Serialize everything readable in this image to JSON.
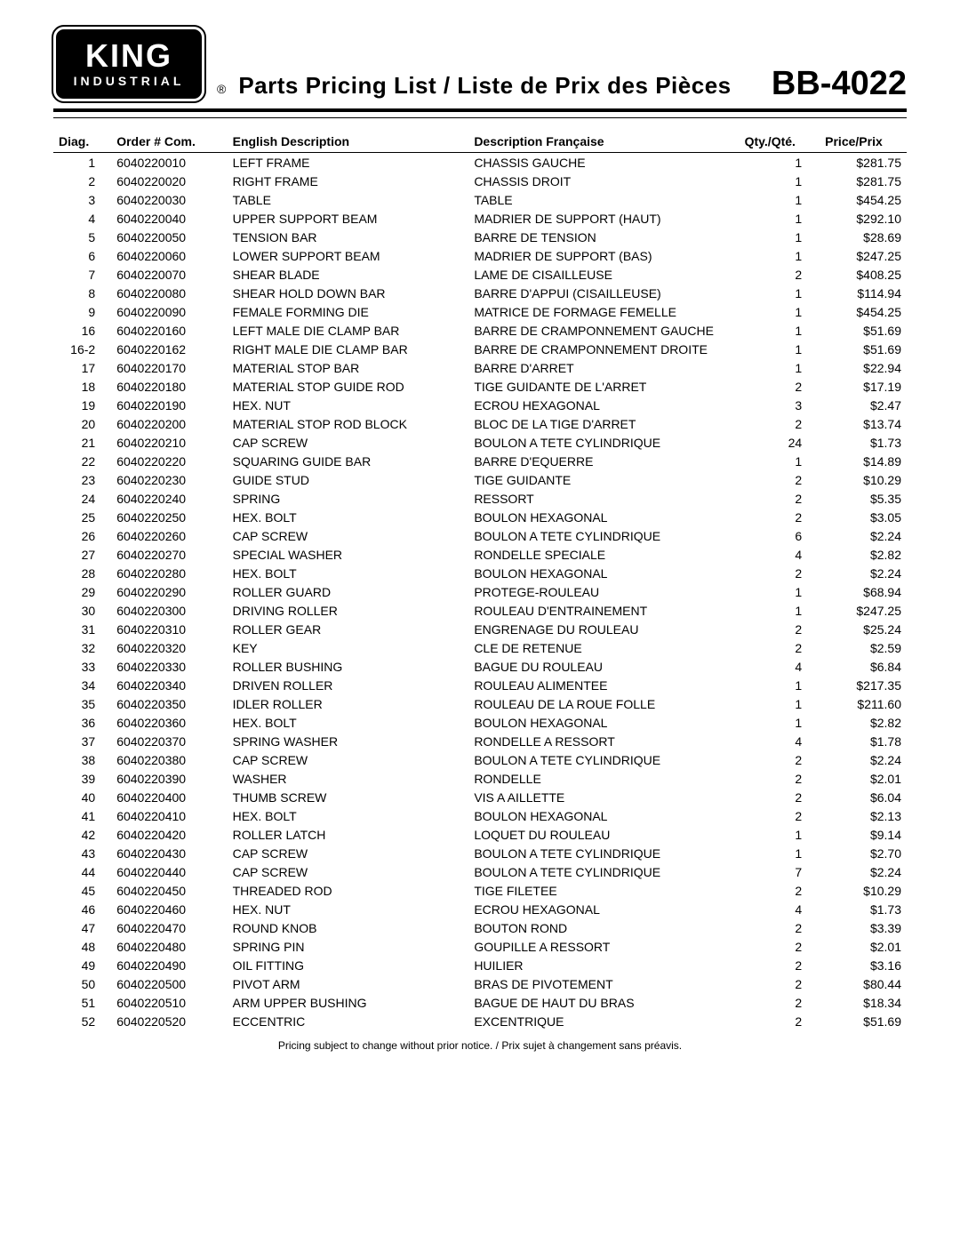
{
  "logo": {
    "top": "KING",
    "bottom": "INDUSTRIAL"
  },
  "title": "Parts Pricing List / Liste de Prix des Pièces",
  "model": "BB-4022",
  "columns": {
    "diag": "Diag.",
    "order": "Order # Com.",
    "en": "English Description",
    "fr": "Description Française",
    "qty": "Qty./Qté.",
    "price": "Price/Prix"
  },
  "rows": [
    {
      "diag": "1",
      "order": "6040220010",
      "en": "LEFT FRAME",
      "fr": "CHASSIS GAUCHE",
      "qty": "1",
      "price": "$281.75"
    },
    {
      "diag": "2",
      "order": "6040220020",
      "en": "RIGHT FRAME",
      "fr": "CHASSIS DROIT",
      "qty": "1",
      "price": "$281.75"
    },
    {
      "diag": "3",
      "order": "6040220030",
      "en": "TABLE",
      "fr": "TABLE",
      "qty": "1",
      "price": "$454.25"
    },
    {
      "diag": "4",
      "order": "6040220040",
      "en": "UPPER SUPPORT BEAM",
      "fr": "MADRIER DE SUPPORT (HAUT)",
      "qty": "1",
      "price": "$292.10"
    },
    {
      "diag": "5",
      "order": "6040220050",
      "en": "TENSION BAR",
      "fr": "BARRE DE TENSION",
      "qty": "1",
      "price": "$28.69"
    },
    {
      "diag": "6",
      "order": "6040220060",
      "en": "LOWER SUPPORT BEAM",
      "fr": "MADRIER DE SUPPORT (BAS)",
      "qty": "1",
      "price": "$247.25"
    },
    {
      "diag": "7",
      "order": "6040220070",
      "en": "SHEAR BLADE",
      "fr": "LAME DE CISAILLEUSE",
      "qty": "2",
      "price": "$408.25"
    },
    {
      "diag": "8",
      "order": "6040220080",
      "en": "SHEAR HOLD DOWN BAR",
      "fr": "BARRE D'APPUI (CISAILLEUSE)",
      "qty": "1",
      "price": "$114.94"
    },
    {
      "diag": "9",
      "order": "6040220090",
      "en": "FEMALE FORMING DIE",
      "fr": "MATRICE DE FORMAGE FEMELLE",
      "qty": "1",
      "price": "$454.25"
    },
    {
      "diag": "16",
      "order": "6040220160",
      "en": "LEFT MALE DIE CLAMP BAR",
      "fr": "BARRE DE CRAMPONNEMENT GAUCHE",
      "qty": "1",
      "price": "$51.69"
    },
    {
      "diag": "16-2",
      "order": "6040220162",
      "en": "RIGHT MALE DIE CLAMP BAR",
      "fr": "BARRE DE CRAMPONNEMENT DROITE",
      "qty": "1",
      "price": "$51.69"
    },
    {
      "diag": "17",
      "order": "6040220170",
      "en": "MATERIAL STOP BAR",
      "fr": "BARRE D'ARRET",
      "qty": "1",
      "price": "$22.94"
    },
    {
      "diag": "18",
      "order": "6040220180",
      "en": "MATERIAL STOP GUIDE ROD",
      "fr": "TIGE GUIDANTE DE L'ARRET",
      "qty": "2",
      "price": "$17.19"
    },
    {
      "diag": "19",
      "order": "6040220190",
      "en": "HEX. NUT",
      "fr": "ECROU HEXAGONAL",
      "qty": "3",
      "price": "$2.47"
    },
    {
      "diag": "20",
      "order": "6040220200",
      "en": "MATERIAL STOP ROD BLOCK",
      "fr": "BLOC DE LA TIGE D'ARRET",
      "qty": "2",
      "price": "$13.74"
    },
    {
      "diag": "21",
      "order": "6040220210",
      "en": "CAP SCREW",
      "fr": "BOULON A TETE CYLINDRIQUE",
      "qty": "24",
      "price": "$1.73"
    },
    {
      "diag": "22",
      "order": "6040220220",
      "en": "SQUARING GUIDE BAR",
      "fr": "BARRE D'EQUERRE",
      "qty": "1",
      "price": "$14.89"
    },
    {
      "diag": "23",
      "order": "6040220230",
      "en": "GUIDE STUD",
      "fr": "TIGE GUIDANTE",
      "qty": "2",
      "price": "$10.29"
    },
    {
      "diag": "24",
      "order": "6040220240",
      "en": "SPRING",
      "fr": "RESSORT",
      "qty": "2",
      "price": "$5.35"
    },
    {
      "diag": "25",
      "order": "6040220250",
      "en": "HEX. BOLT",
      "fr": "BOULON HEXAGONAL",
      "qty": "2",
      "price": "$3.05"
    },
    {
      "diag": "26",
      "order": "6040220260",
      "en": "CAP SCREW",
      "fr": "BOULON A TETE CYLINDRIQUE",
      "qty": "6",
      "price": "$2.24"
    },
    {
      "diag": "27",
      "order": "6040220270",
      "en": "SPECIAL WASHER",
      "fr": "RONDELLE SPECIALE",
      "qty": "4",
      "price": "$2.82"
    },
    {
      "diag": "28",
      "order": "6040220280",
      "en": "HEX. BOLT",
      "fr": "BOULON HEXAGONAL",
      "qty": "2",
      "price": "$2.24"
    },
    {
      "diag": "29",
      "order": "6040220290",
      "en": "ROLLER GUARD",
      "fr": "PROTEGE-ROULEAU",
      "qty": "1",
      "price": "$68.94"
    },
    {
      "diag": "30",
      "order": "6040220300",
      "en": "DRIVING ROLLER",
      "fr": "ROULEAU D'ENTRAINEMENT",
      "qty": "1",
      "price": "$247.25"
    },
    {
      "diag": "31",
      "order": "6040220310",
      "en": "ROLLER GEAR",
      "fr": "ENGRENAGE DU ROULEAU",
      "qty": "2",
      "price": "$25.24"
    },
    {
      "diag": "32",
      "order": "6040220320",
      "en": "KEY",
      "fr": "CLE DE RETENUE",
      "qty": "2",
      "price": "$2.59"
    },
    {
      "diag": "33",
      "order": "6040220330",
      "en": "ROLLER BUSHING",
      "fr": "BAGUE DU ROULEAU",
      "qty": "4",
      "price": "$6.84"
    },
    {
      "diag": "34",
      "order": "6040220340",
      "en": "DRIVEN ROLLER",
      "fr": "ROULEAU ALIMENTEE",
      "qty": "1",
      "price": "$217.35"
    },
    {
      "diag": "35",
      "order": "6040220350",
      "en": "IDLER ROLLER",
      "fr": "ROULEAU DE LA ROUE FOLLE",
      "qty": "1",
      "price": "$211.60"
    },
    {
      "diag": "36",
      "order": "6040220360",
      "en": "HEX. BOLT",
      "fr": "BOULON HEXAGONAL",
      "qty": "1",
      "price": "$2.82"
    },
    {
      "diag": "37",
      "order": "6040220370",
      "en": "SPRING WASHER",
      "fr": "RONDELLE A RESSORT",
      "qty": "4",
      "price": "$1.78"
    },
    {
      "diag": "38",
      "order": "6040220380",
      "en": "CAP SCREW",
      "fr": "BOULON A TETE CYLINDRIQUE",
      "qty": "2",
      "price": "$2.24"
    },
    {
      "diag": "39",
      "order": "6040220390",
      "en": "WASHER",
      "fr": "RONDELLE",
      "qty": "2",
      "price": "$2.01"
    },
    {
      "diag": "40",
      "order": "6040220400",
      "en": "THUMB SCREW",
      "fr": "VIS A AILLETTE",
      "qty": "2",
      "price": "$6.04"
    },
    {
      "diag": "41",
      "order": "6040220410",
      "en": "HEX. BOLT",
      "fr": "BOULON HEXAGONAL",
      "qty": "2",
      "price": "$2.13"
    },
    {
      "diag": "42",
      "order": "6040220420",
      "en": "ROLLER LATCH",
      "fr": "LOQUET DU ROULEAU",
      "qty": "1",
      "price": "$9.14"
    },
    {
      "diag": "43",
      "order": "6040220430",
      "en": "CAP SCREW",
      "fr": "BOULON A TETE CYLINDRIQUE",
      "qty": "1",
      "price": "$2.70"
    },
    {
      "diag": "44",
      "order": "6040220440",
      "en": "CAP SCREW",
      "fr": "BOULON A TETE CYLINDRIQUE",
      "qty": "7",
      "price": "$2.24"
    },
    {
      "diag": "45",
      "order": "6040220450",
      "en": "THREADED ROD",
      "fr": "TIGE FILETEE",
      "qty": "2",
      "price": "$10.29"
    },
    {
      "diag": "46",
      "order": "6040220460",
      "en": "HEX. NUT",
      "fr": "ECROU HEXAGONAL",
      "qty": "4",
      "price": "$1.73"
    },
    {
      "diag": "47",
      "order": "6040220470",
      "en": "ROUND KNOB",
      "fr": "BOUTON ROND",
      "qty": "2",
      "price": "$3.39"
    },
    {
      "diag": "48",
      "order": "6040220480",
      "en": "SPRING PIN",
      "fr": "GOUPILLE A RESSORT",
      "qty": "2",
      "price": "$2.01"
    },
    {
      "diag": "49",
      "order": "6040220490",
      "en": "OIL FITTING",
      "fr": "HUILIER",
      "qty": "2",
      "price": "$3.16"
    },
    {
      "diag": "50",
      "order": "6040220500",
      "en": "PIVOT ARM",
      "fr": "BRAS DE PIVOTEMENT",
      "qty": "2",
      "price": "$80.44"
    },
    {
      "diag": "51",
      "order": "6040220510",
      "en": "ARM UPPER BUSHING",
      "fr": "BAGUE DE HAUT DU BRAS",
      "qty": "2",
      "price": "$18.34"
    },
    {
      "diag": "52",
      "order": "6040220520",
      "en": "ECCENTRIC",
      "fr": "EXCENTRIQUE",
      "qty": "2",
      "price": "$51.69"
    }
  ],
  "footer": "Pricing subject to change without prior notice. / Prix sujet à changement sans préavis."
}
